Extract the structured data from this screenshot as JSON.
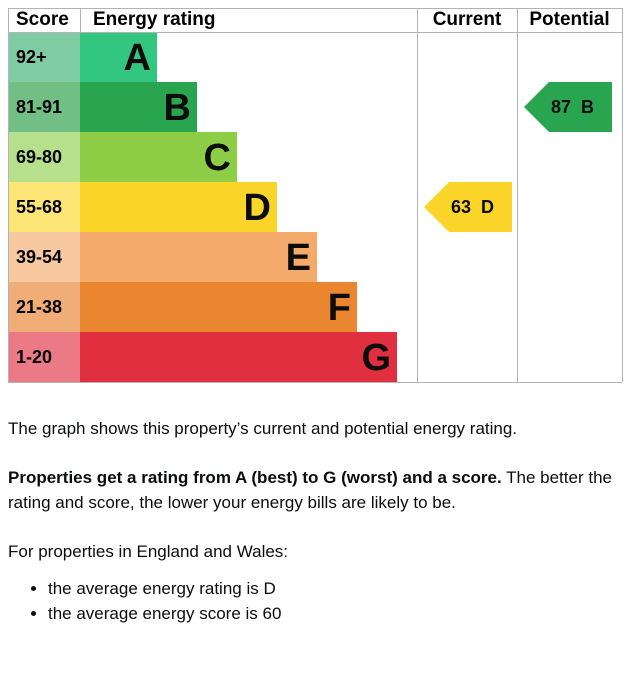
{
  "chart_data": {
    "type": "epc",
    "headers": {
      "score": "Score",
      "rating": "Energy rating",
      "current": "Current",
      "potential": "Potential"
    },
    "bands": [
      {
        "score": "92+",
        "letter": "A",
        "color": "#33c67e",
        "score_color": "#7fcba3"
      },
      {
        "score": "81-91",
        "letter": "B",
        "color": "#2aa54f",
        "score_color": "#72bf86"
      },
      {
        "score": "69-80",
        "letter": "C",
        "color": "#8dce46",
        "score_color": "#b6e08c"
      },
      {
        "score": "55-68",
        "letter": "D",
        "color": "#fcd52b",
        "score_color": "#fde676"
      },
      {
        "score": "39-54",
        "letter": "E",
        "color": "#f4aa6a",
        "score_color": "#f8c9a0"
      },
      {
        "score": "21-38",
        "letter": "F",
        "color": "#ea8530",
        "score_color": "#f1ad78"
      },
      {
        "score": "1-20",
        "letter": "G",
        "color": "#e0303f",
        "score_color": "#ec7a86"
      }
    ],
    "current": {
      "value": 63,
      "letter": "D"
    },
    "potential": {
      "value": 87,
      "letter": "B"
    }
  },
  "text": {
    "intro": "The graph shows this property’s current and potential energy rating.",
    "rating_bold": "Properties get a rating from A (best) to G (worst) and a score.",
    "rating_rest": " The better the rating and score, the lower your energy bills are likely to be.",
    "region": "For properties in England and Wales:",
    "bullets": [
      "the average energy rating is D",
      "the average energy score is 60"
    ]
  }
}
